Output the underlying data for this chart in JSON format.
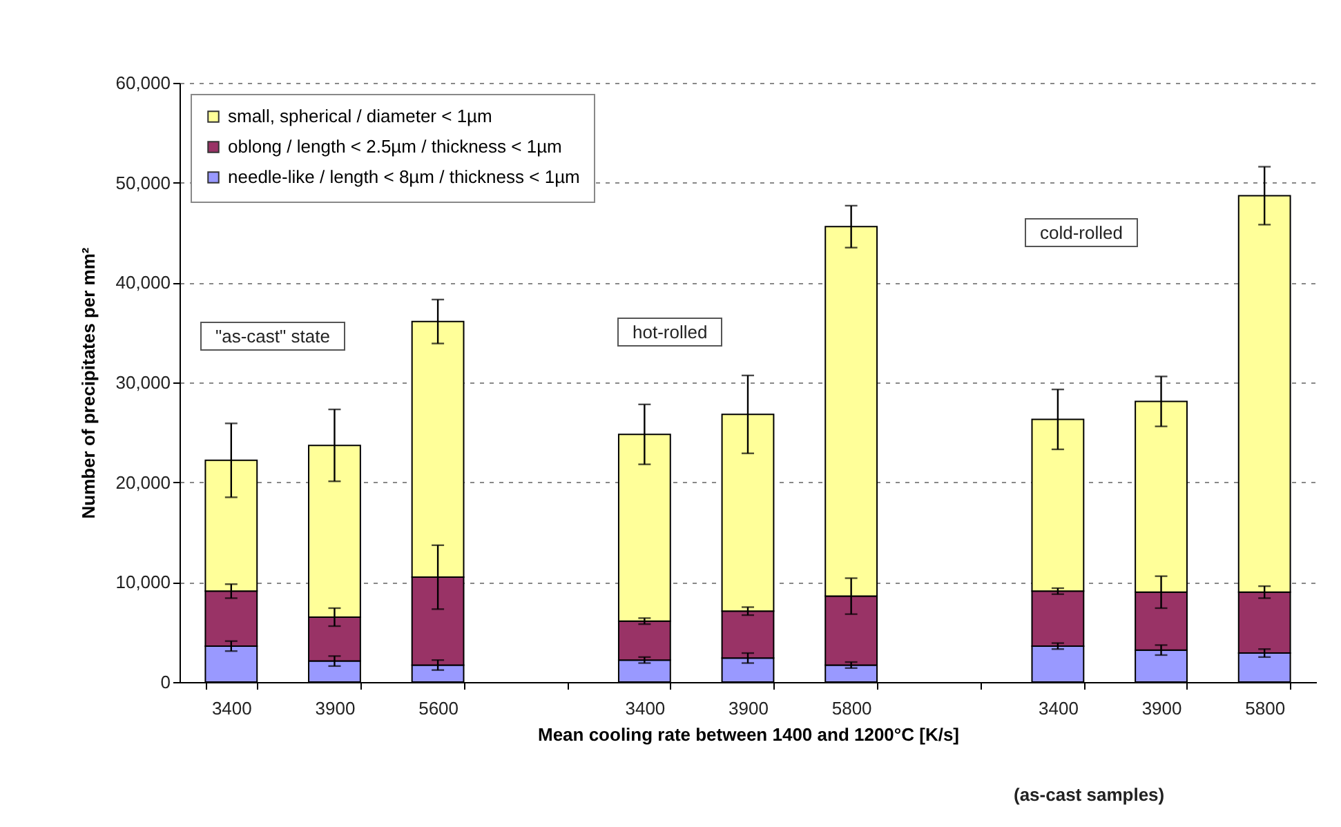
{
  "chart_data": {
    "type": "bar",
    "stacked": true,
    "ylabel": "Number of precipitates per mm²",
    "xlabel": "Mean cooling rate between 1400 and 1200°C [K/s]",
    "categories": [
      "3400",
      "3900",
      "5600",
      null,
      "3400",
      "3900",
      "5800",
      null,
      "3400",
      "3900",
      "5800"
    ],
    "series": [
      {
        "name": "needle-like / length < 8µm / thickness < 1µm",
        "color": "#9999ff",
        "values": [
          3600,
          2100,
          1700,
          null,
          2200,
          2400,
          1700,
          null,
          3600,
          3200,
          2900
        ],
        "errors": [
          500,
          500,
          500,
          null,
          300,
          500,
          300,
          null,
          300,
          500,
          400
        ]
      },
      {
        "name": "oblong / length < 2.5µm / thickness < 1µm",
        "color": "#993366",
        "values": [
          5500,
          4400,
          8800,
          null,
          3900,
          4700,
          6900,
          null,
          5500,
          5800,
          6100
        ],
        "errors": [
          700,
          900,
          3200,
          null,
          300,
          400,
          1800,
          null,
          300,
          1600,
          600
        ]
      },
      {
        "name": "small, spherical / diameter < 1µm",
        "color": "#ffff99",
        "values": [
          13100,
          17200,
          25600,
          null,
          18700,
          19700,
          37000,
          null,
          17200,
          19100,
          39700
        ],
        "errors": [
          3700,
          3600,
          2200,
          null,
          3000,
          3900,
          2100,
          null,
          3000,
          2500,
          2900
        ]
      }
    ],
    "ylim": [
      0,
      60000
    ],
    "yticks": [
      0,
      {
        "value": 10000,
        "label": "10,000"
      },
      {
        "value": 20000,
        "label": "20,000"
      },
      {
        "value": 30000,
        "label": "30,000"
      },
      {
        "value": 40000,
        "label": "40,000"
      },
      {
        "value": 50000,
        "label": "50,000"
      },
      {
        "value": 60000,
        "label": "60,000"
      }
    ],
    "grid": "y",
    "legend": "top left",
    "annotations": [
      "\"as-cast\" state",
      "hot-rolled",
      "cold-rolled",
      "(as-cast samples)"
    ]
  }
}
